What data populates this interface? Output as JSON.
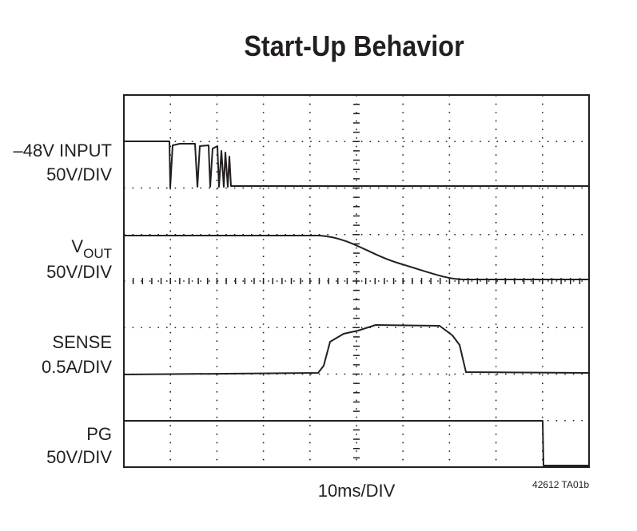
{
  "title": "Start-Up Behavior",
  "channels": [
    {
      "label": "–48V INPUT",
      "scale": "50V/DIV"
    },
    {
      "label": {
        "main": "V",
        "sub": "OUT"
      },
      "scale": "50V/DIV"
    },
    {
      "label": "SENSE",
      "scale": "0.5A/DIV"
    },
    {
      "label": "PG",
      "scale": "50V/DIV"
    }
  ],
  "timebase": "10ms/DIV",
  "figure_id": "42612 TA01b"
}
